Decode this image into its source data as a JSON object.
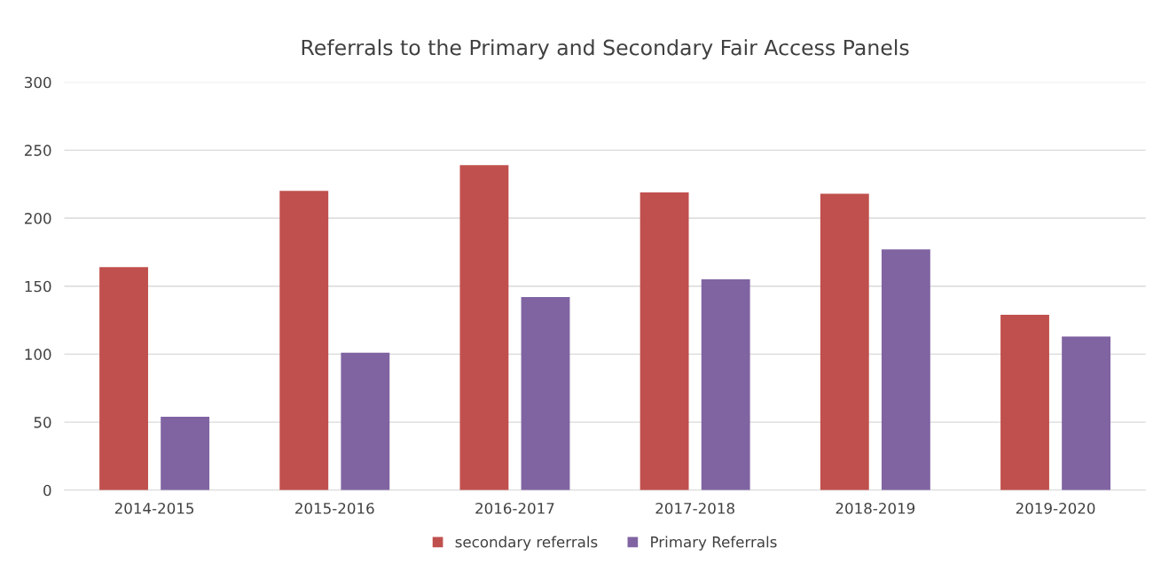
{
  "chart_data": {
    "type": "bar",
    "title": "Referrals to the Primary and Secondary Fair Access Panels",
    "categories": [
      "2014-2015",
      "2015-2016",
      "2016-2017",
      "2017-2018",
      "2018-2019",
      "2019-2020"
    ],
    "series": [
      {
        "name": "secondary referrals",
        "color": "#c0504d",
        "values": [
          164,
          220,
          239,
          219,
          218,
          129
        ]
      },
      {
        "name": "Primary Referrals",
        "color": "#8064a2",
        "values": [
          54,
          101,
          142,
          155,
          177,
          113
        ]
      }
    ],
    "ylim": [
      0,
      300
    ],
    "yticks": [
      0,
      50,
      100,
      150,
      200,
      250,
      300
    ],
    "grid": "y",
    "legend": "bottom"
  }
}
